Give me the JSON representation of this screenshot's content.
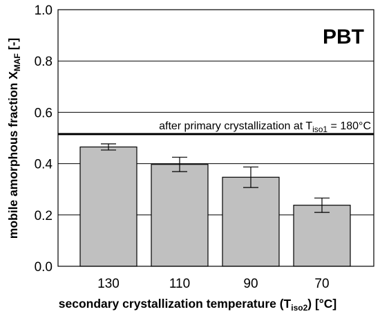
{
  "chart_data": {
    "type": "bar",
    "panel_label": "PBT",
    "categories": [
      "130",
      "110",
      "90",
      "70"
    ],
    "values": [
      0.465,
      0.397,
      0.347,
      0.238
    ],
    "errors": [
      0.012,
      0.028,
      0.04,
      0.028
    ],
    "ylim": [
      0,
      1.0
    ],
    "yticks": [
      "0.0",
      "0.2",
      "0.4",
      "0.6",
      "0.8",
      "1.0"
    ],
    "grid": true,
    "bar_color": "#c0c0c0",
    "reference_line": {
      "value": 0.515,
      "label_prefix": "after primary crystallization at T",
      "label_sub": "iso1",
      "label_suffix": " = 180°C"
    },
    "ylabel": {
      "main": "mobile amorphous fraction X",
      "sub": "MAF",
      "suffix": " [-]"
    },
    "xlabel": {
      "main": "secondary crystallization temperature (T",
      "sub": "iso2",
      "suffix": ") [°C]"
    }
  }
}
